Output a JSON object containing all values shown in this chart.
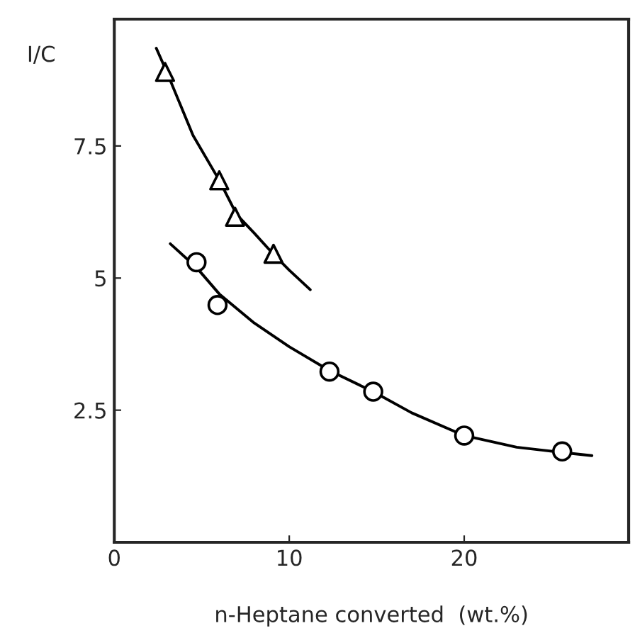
{
  "chart_data": {
    "type": "scatter",
    "xlabel": "n-Heptane converted  (wt.%)",
    "ylabel": "I/C",
    "xlim": [
      0,
      29.4
    ],
    "ylim": [
      0,
      9.9
    ],
    "xticks": [
      0,
      10,
      20
    ],
    "yticks": [
      2.5,
      5,
      7.5
    ],
    "grid": false,
    "legend": false,
    "series": [
      {
        "marker": "triangle",
        "color": "#000000",
        "x": [
          2.9,
          6.0,
          6.9,
          9.1
        ],
        "values": [
          8.9,
          6.85,
          6.16,
          5.46
        ]
      },
      {
        "marker": "circle",
        "color": "#000000",
        "x": [
          4.7,
          5.9,
          12.3,
          14.8,
          20.0,
          25.6
        ],
        "values": [
          5.3,
          4.49,
          3.23,
          2.85,
          2.02,
          1.72
        ]
      },
      {
        "type": "line",
        "marker": "none",
        "line_style": "solid",
        "color": "#000000",
        "x": [
          2.4,
          3,
          4.5,
          6,
          7,
          8,
          9.1,
          10,
          11.2
        ],
        "values": [
          9.35,
          8.9,
          7.7,
          6.85,
          6.2,
          5.85,
          5.45,
          5.15,
          4.78
        ]
      },
      {
        "type": "line",
        "marker": "none",
        "line_style": "solid",
        "color": "#000000",
        "x": [
          3.2,
          4.7,
          6,
          8,
          10,
          12.3,
          14.8,
          17,
          20,
          23,
          25.6,
          27.3
        ],
        "values": [
          5.65,
          5.2,
          4.7,
          4.15,
          3.7,
          3.25,
          2.85,
          2.45,
          2.02,
          1.8,
          1.7,
          1.64
        ]
      }
    ]
  }
}
